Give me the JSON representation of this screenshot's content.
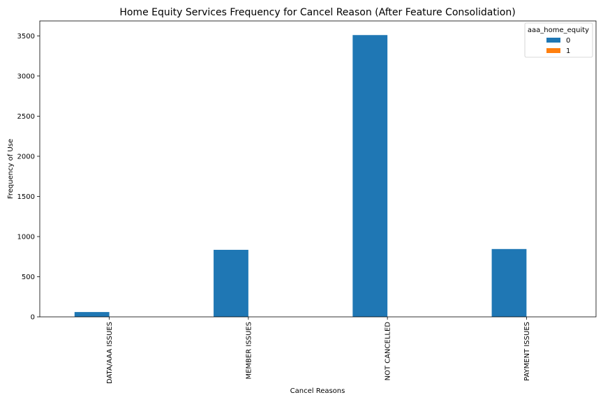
{
  "chart_data": {
    "type": "bar",
    "title": "Home Equity Services Frequency for Cancel Reason (After Feature Consolidation)",
    "xlabel": "Cancel Reasons",
    "ylabel": "Frequency of Use",
    "categories": [
      "DATA/AAA ISSUES",
      "MEMBER ISSUES",
      "NOT CANCELLED",
      "PAYMENT ISSUES"
    ],
    "series": [
      {
        "name": "0",
        "values": [
          60,
          835,
          3510,
          845
        ],
        "color": "#1f77b4"
      },
      {
        "name": "1",
        "values": [
          0,
          0,
          0,
          0
        ],
        "color": "#ff7f0e"
      }
    ],
    "legend_title": "aaa_home_equity",
    "legend_position": "top-right",
    "ylim": [
      0,
      3686
    ],
    "yticks": [
      0,
      500,
      1000,
      1500,
      2000,
      2500,
      3000,
      3500
    ],
    "grid": false
  }
}
